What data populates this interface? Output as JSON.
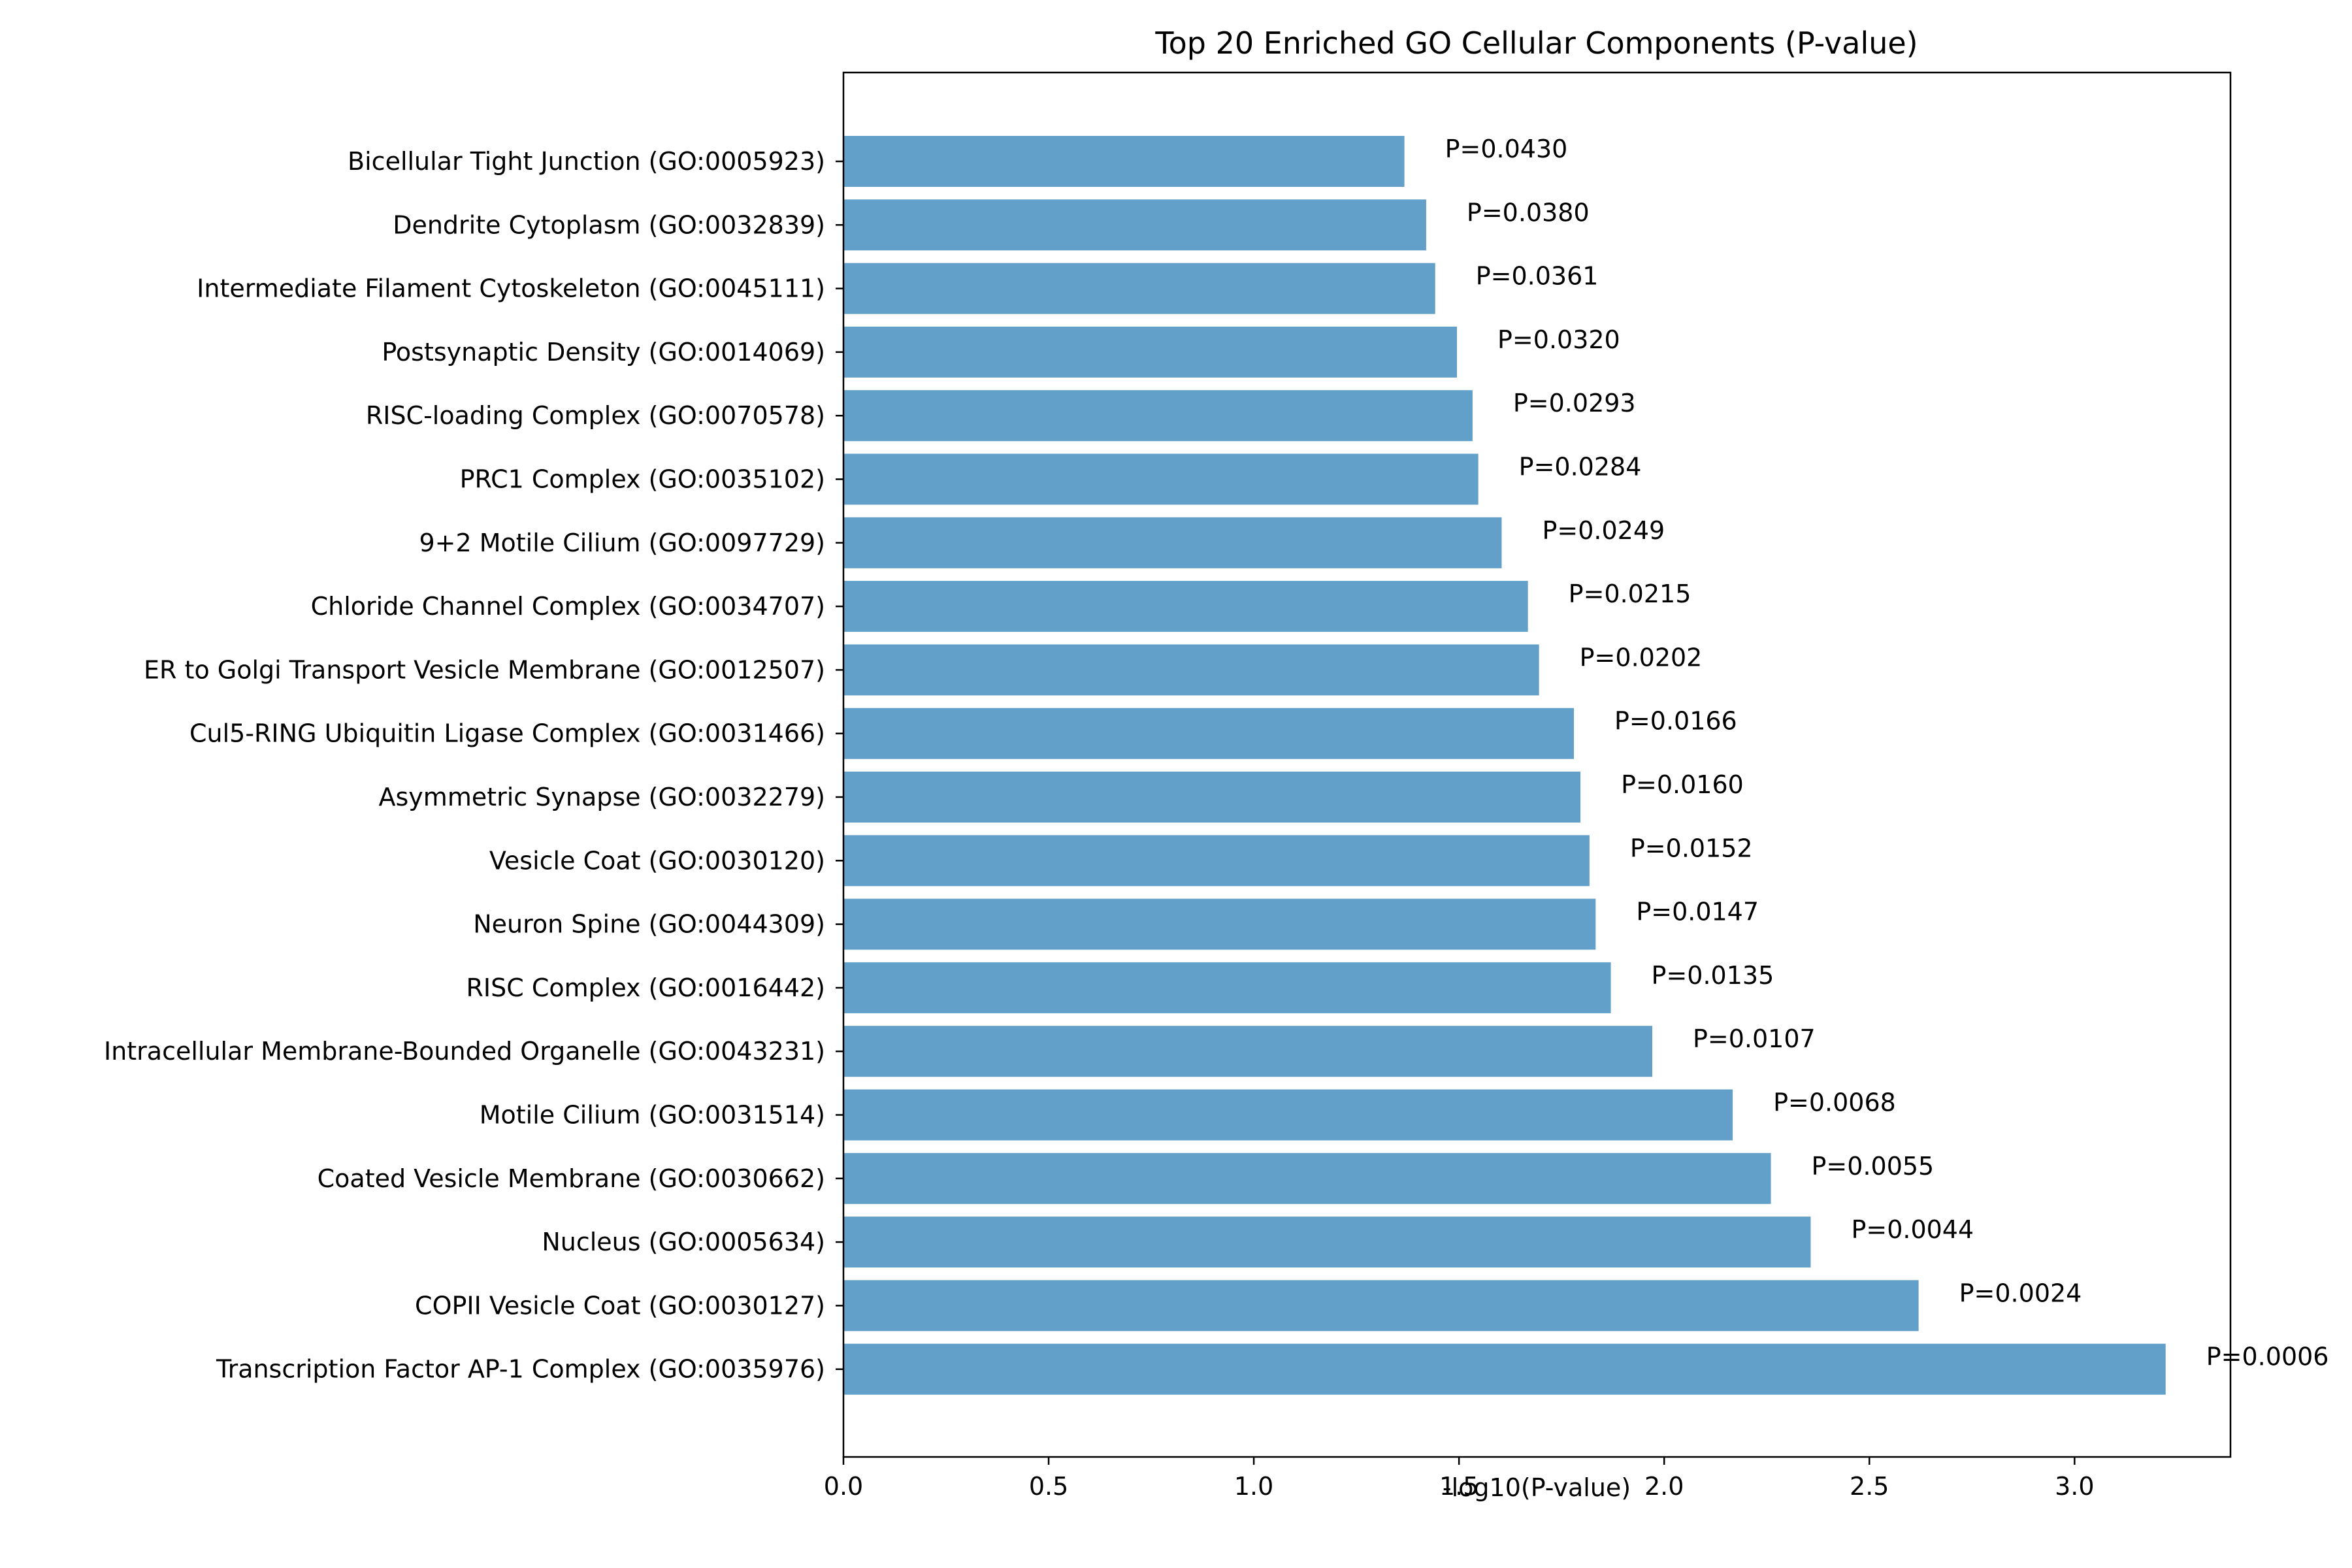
{
  "chart_data": {
    "type": "bar",
    "orientation": "horizontal",
    "title": "Top 20 Enriched GO Cellular Components (P-value)",
    "xlabel": "-log10(P-value)",
    "ylabel": "",
    "xlim": [
      0,
      3.38
    ],
    "xticks": [
      "0.0",
      "0.5",
      "1.0",
      "1.5",
      "2.0",
      "2.5",
      "3.0"
    ],
    "bar_color": "#62a0ca",
    "grid": false,
    "categories": [
      "Bicellular Tight Junction (GO:0005923)",
      "Dendrite Cytoplasm (GO:0032839)",
      "Intermediate Filament Cytoskeleton (GO:0045111)",
      "Postsynaptic Density (GO:0014069)",
      "RISC-loading Complex (GO:0070578)",
      "PRC1 Complex (GO:0035102)",
      "9+2 Motile Cilium (GO:0097729)",
      "Chloride Channel Complex (GO:0034707)",
      "ER to Golgi Transport Vesicle Membrane (GO:0012507)",
      "Cul5-RING Ubiquitin Ligase Complex (GO:0031466)",
      "Asymmetric Synapse (GO:0032279)",
      "Vesicle Coat (GO:0030120)",
      "Neuron Spine (GO:0044309)",
      "RISC Complex (GO:0016442)",
      "Intracellular Membrane-Bounded Organelle (GO:0043231)",
      "Motile Cilium (GO:0031514)",
      "Coated Vesicle Membrane (GO:0030662)",
      "Nucleus (GO:0005634)",
      "COPII Vesicle Coat (GO:0030127)",
      "Transcription Factor AP-1 Complex (GO:0035976)"
    ],
    "values": [
      1.367,
      1.42,
      1.442,
      1.495,
      1.533,
      1.547,
      1.604,
      1.668,
      1.695,
      1.78,
      1.796,
      1.818,
      1.833,
      1.87,
      1.971,
      2.167,
      2.26,
      2.357,
      2.62,
      3.222
    ],
    "value_labels": [
      "P=0.0430",
      "P=0.0380",
      "P=0.0361",
      "P=0.0320",
      "P=0.0293",
      "P=0.0284",
      "P=0.0249",
      "P=0.0215",
      "P=0.0202",
      "P=0.0166",
      "P=0.0160",
      "P=0.0152",
      "P=0.0147",
      "P=0.0135",
      "P=0.0107",
      "P=0.0068",
      "P=0.0055",
      "P=0.0044",
      "P=0.0024",
      "P=0.0006"
    ]
  }
}
